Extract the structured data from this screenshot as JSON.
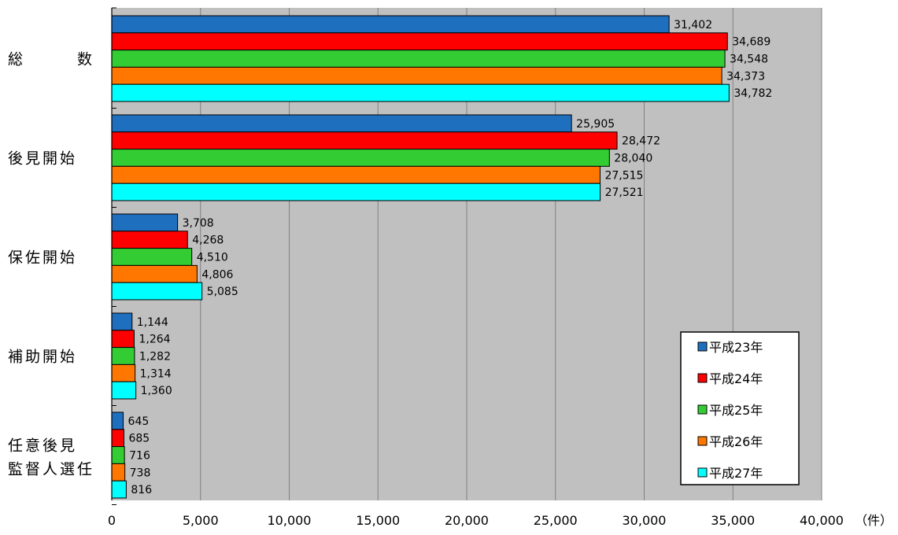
{
  "chart_data": {
    "type": "bar",
    "orientation": "horizontal",
    "categories": [
      [
        "総",
        "数"
      ],
      [
        "後見開始"
      ],
      [
        "保佐開始"
      ],
      [
        "補助開始"
      ],
      [
        "任意後見",
        "監督人選任"
      ]
    ],
    "series": [
      {
        "name": "平成23年",
        "color": "#1f6fbf",
        "values": [
          31402,
          25905,
          3708,
          1144,
          645
        ],
        "labels": [
          "31,402",
          "25,905",
          "3,708",
          "1,144",
          "645"
        ]
      },
      {
        "name": "平成24年",
        "color": "#ff0000",
        "values": [
          34689,
          28472,
          4268,
          1264,
          685
        ],
        "labels": [
          "34,689",
          "28,472",
          "4,268",
          "1,264",
          "685"
        ]
      },
      {
        "name": "平成25年",
        "color": "#33cc33",
        "values": [
          34548,
          28040,
          4510,
          1282,
          716
        ],
        "labels": [
          "34,548",
          "28,040",
          "4,510",
          "1,282",
          "716"
        ]
      },
      {
        "name": "平成26年",
        "color": "#ff7700",
        "values": [
          34373,
          27515,
          4806,
          1314,
          738
        ],
        "labels": [
          "34,373",
          "27,515",
          "4,806",
          "1,314",
          "738"
        ]
      },
      {
        "name": "平成27年",
        "color": "#00ffff",
        "values": [
          34782,
          27521,
          5085,
          1360,
          816
        ],
        "labels": [
          "34,782",
          "27,521",
          "5,085",
          "1,360",
          "816"
        ]
      }
    ],
    "xlim": [
      0,
      40000
    ],
    "xticks": [
      0,
      5000,
      10000,
      15000,
      20000,
      25000,
      30000,
      35000,
      40000
    ],
    "xtick_labels": [
      "0",
      "5,000",
      "10,000",
      "15,000",
      "20,000",
      "25,000",
      "30,000",
      "35,000",
      "40,000"
    ],
    "xlabel": "（件）",
    "grid": true,
    "legend_position": "bottom-right",
    "plot_background": "#c0c0c0"
  }
}
